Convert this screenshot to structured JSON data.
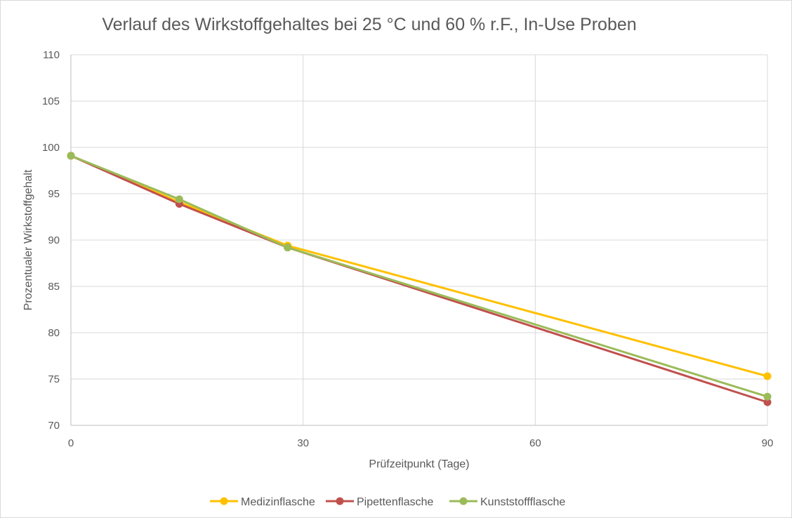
{
  "chart_data": {
    "type": "line",
    "title": "Verlauf des Wirkstoffgehaltes bei 25 °C und 60 % r.F., In-Use Proben",
    "xlabel": "Prüfzeitpunkt (Tage)",
    "ylabel": "Prozentualer Wirkstoffgehalt",
    "xlim": [
      0,
      90
    ],
    "ylim": [
      70,
      110
    ],
    "xticks": [
      0,
      30,
      60,
      90
    ],
    "yticks": [
      70,
      75,
      80,
      85,
      90,
      95,
      100,
      105,
      110
    ],
    "grid": true,
    "legend_position": "bottom",
    "series": [
      {
        "name": "Medizinflasche",
        "color": "#ffc000",
        "x": [
          0,
          14,
          28,
          90
        ],
        "y": [
          99.1,
          94.1,
          89.4,
          75.3
        ]
      },
      {
        "name": "Pipettenflasche",
        "color": "#c0504d",
        "x": [
          0,
          14,
          28,
          90
        ],
        "y": [
          99.1,
          93.9,
          89.2,
          72.5
        ]
      },
      {
        "name": "Kunststoffflasche",
        "color": "#9bbb59",
        "x": [
          0,
          14,
          28,
          90
        ],
        "y": [
          99.1,
          94.4,
          89.2,
          73.1
        ]
      }
    ]
  }
}
